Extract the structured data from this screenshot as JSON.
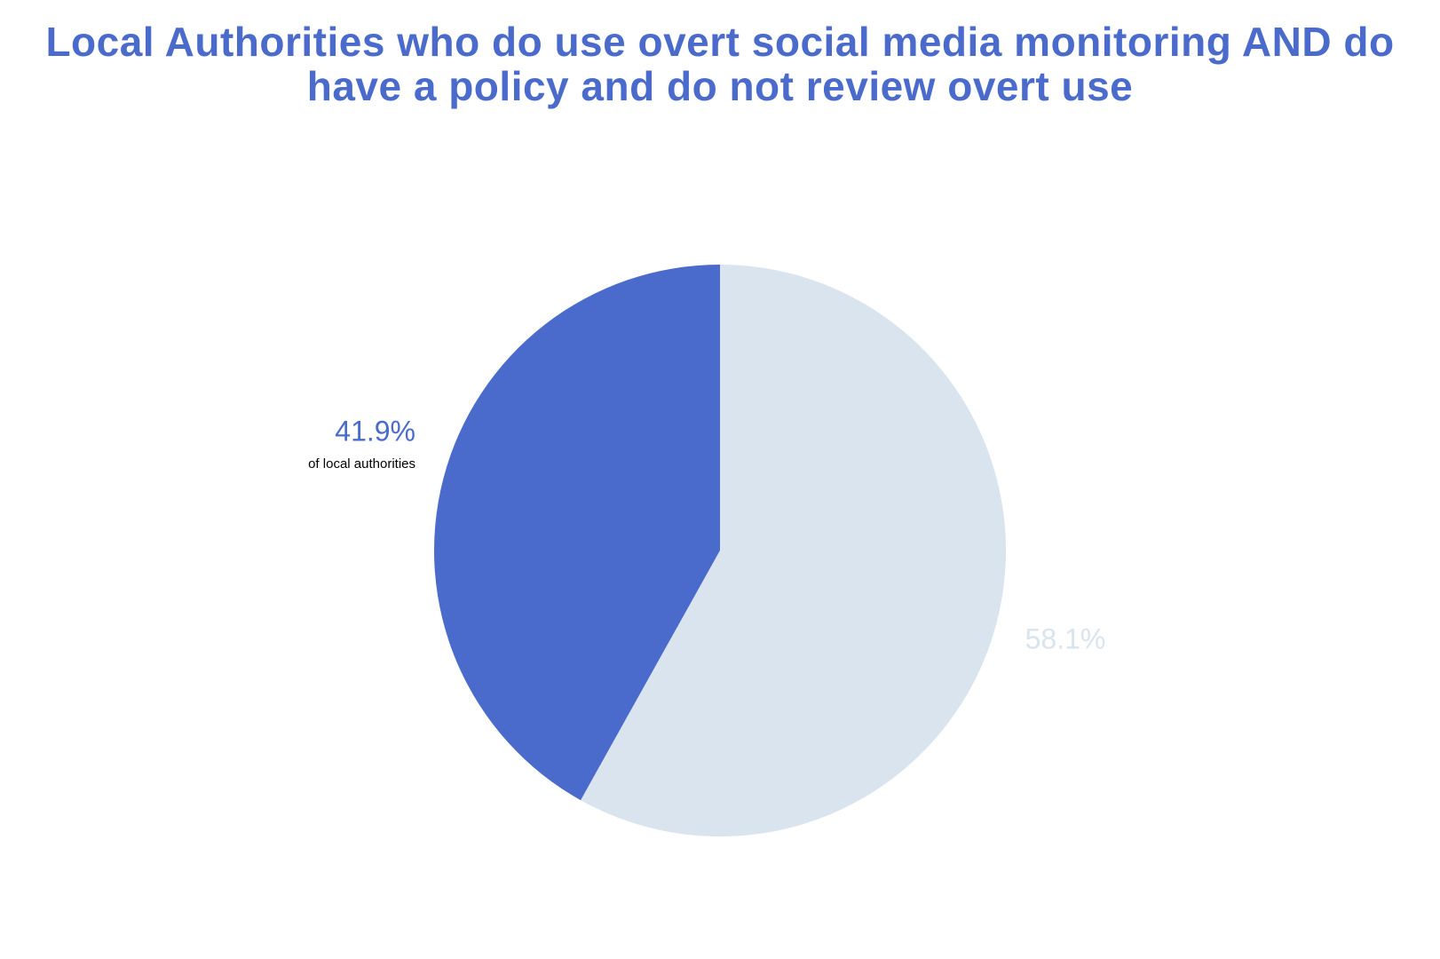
{
  "chart_data": {
    "type": "pie",
    "title": "Local Authorities who do use overt social media monitoring AND do have a policy and do not review overt use",
    "values": [
      41.9,
      58.1
    ],
    "value_labels": [
      "41.9%",
      "58.1%"
    ],
    "colors": [
      "#4a6bcc",
      "#d9e4ee"
    ],
    "annotation": "of local authorities"
  }
}
